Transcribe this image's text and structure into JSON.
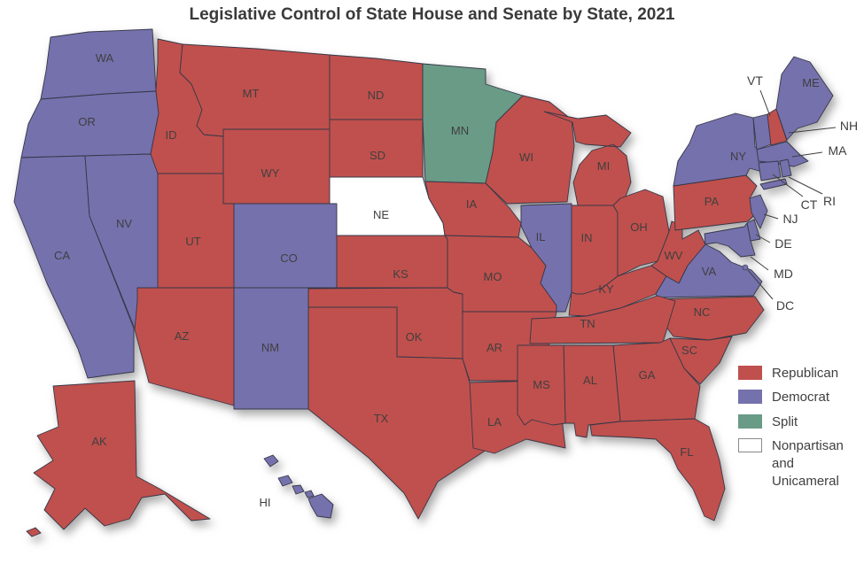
{
  "title": "Legislative Control of State House and Senate by State, 2021",
  "colors": {
    "republican": "#c0504d",
    "democrat": "#7571ad",
    "split": "#699b86",
    "nonpartisan": "#ffffff",
    "state_border": "#363748",
    "label_text": "#3f3f3f"
  },
  "legend": {
    "items": [
      {
        "key": "republican",
        "label": "Republican"
      },
      {
        "key": "democrat",
        "label": "Democrat"
      },
      {
        "key": "split",
        "label": "Split"
      },
      {
        "key": "nonpartisan",
        "label": "Nonpartisan and Unicameral"
      }
    ]
  },
  "states": [
    {
      "abbr": "WA",
      "party": "democrat"
    },
    {
      "abbr": "OR",
      "party": "democrat"
    },
    {
      "abbr": "CA",
      "party": "democrat"
    },
    {
      "abbr": "NV",
      "party": "democrat"
    },
    {
      "abbr": "ID",
      "party": "republican"
    },
    {
      "abbr": "MT",
      "party": "republican"
    },
    {
      "abbr": "WY",
      "party": "republican"
    },
    {
      "abbr": "UT",
      "party": "republican"
    },
    {
      "abbr": "CO",
      "party": "democrat"
    },
    {
      "abbr": "AZ",
      "party": "republican"
    },
    {
      "abbr": "NM",
      "party": "democrat"
    },
    {
      "abbr": "ND",
      "party": "republican"
    },
    {
      "abbr": "SD",
      "party": "republican"
    },
    {
      "abbr": "NE",
      "party": "nonpartisan"
    },
    {
      "abbr": "KS",
      "party": "republican"
    },
    {
      "abbr": "OK",
      "party": "republican"
    },
    {
      "abbr": "TX",
      "party": "republican"
    },
    {
      "abbr": "MN",
      "party": "split"
    },
    {
      "abbr": "IA",
      "party": "republican"
    },
    {
      "abbr": "MO",
      "party": "republican"
    },
    {
      "abbr": "AR",
      "party": "republican"
    },
    {
      "abbr": "LA",
      "party": "republican"
    },
    {
      "abbr": "WI",
      "party": "republican"
    },
    {
      "abbr": "IL",
      "party": "democrat"
    },
    {
      "abbr": "MI",
      "party": "republican"
    },
    {
      "abbr": "IN",
      "party": "republican"
    },
    {
      "abbr": "OH",
      "party": "republican"
    },
    {
      "abbr": "KY",
      "party": "republican"
    },
    {
      "abbr": "WV",
      "party": "republican"
    },
    {
      "abbr": "VA",
      "party": "democrat"
    },
    {
      "abbr": "NC",
      "party": "republican"
    },
    {
      "abbr": "SC",
      "party": "republican"
    },
    {
      "abbr": "TN",
      "party": "republican"
    },
    {
      "abbr": "GA",
      "party": "republican"
    },
    {
      "abbr": "AL",
      "party": "republican"
    },
    {
      "abbr": "MS",
      "party": "republican"
    },
    {
      "abbr": "FL",
      "party": "republican"
    },
    {
      "abbr": "PA",
      "party": "republican"
    },
    {
      "abbr": "NY",
      "party": "democrat"
    },
    {
      "abbr": "VT",
      "party": "democrat"
    },
    {
      "abbr": "NH",
      "party": "republican"
    },
    {
      "abbr": "ME",
      "party": "democrat"
    },
    {
      "abbr": "MA",
      "party": "democrat"
    },
    {
      "abbr": "CT",
      "party": "democrat"
    },
    {
      "abbr": "RI",
      "party": "democrat"
    },
    {
      "abbr": "NJ",
      "party": "democrat"
    },
    {
      "abbr": "DE",
      "party": "democrat"
    },
    {
      "abbr": "MD",
      "party": "democrat"
    },
    {
      "abbr": "DC",
      "party": "democrat"
    },
    {
      "abbr": "AK",
      "party": "republican"
    },
    {
      "abbr": "HI",
      "party": "democrat"
    }
  ]
}
